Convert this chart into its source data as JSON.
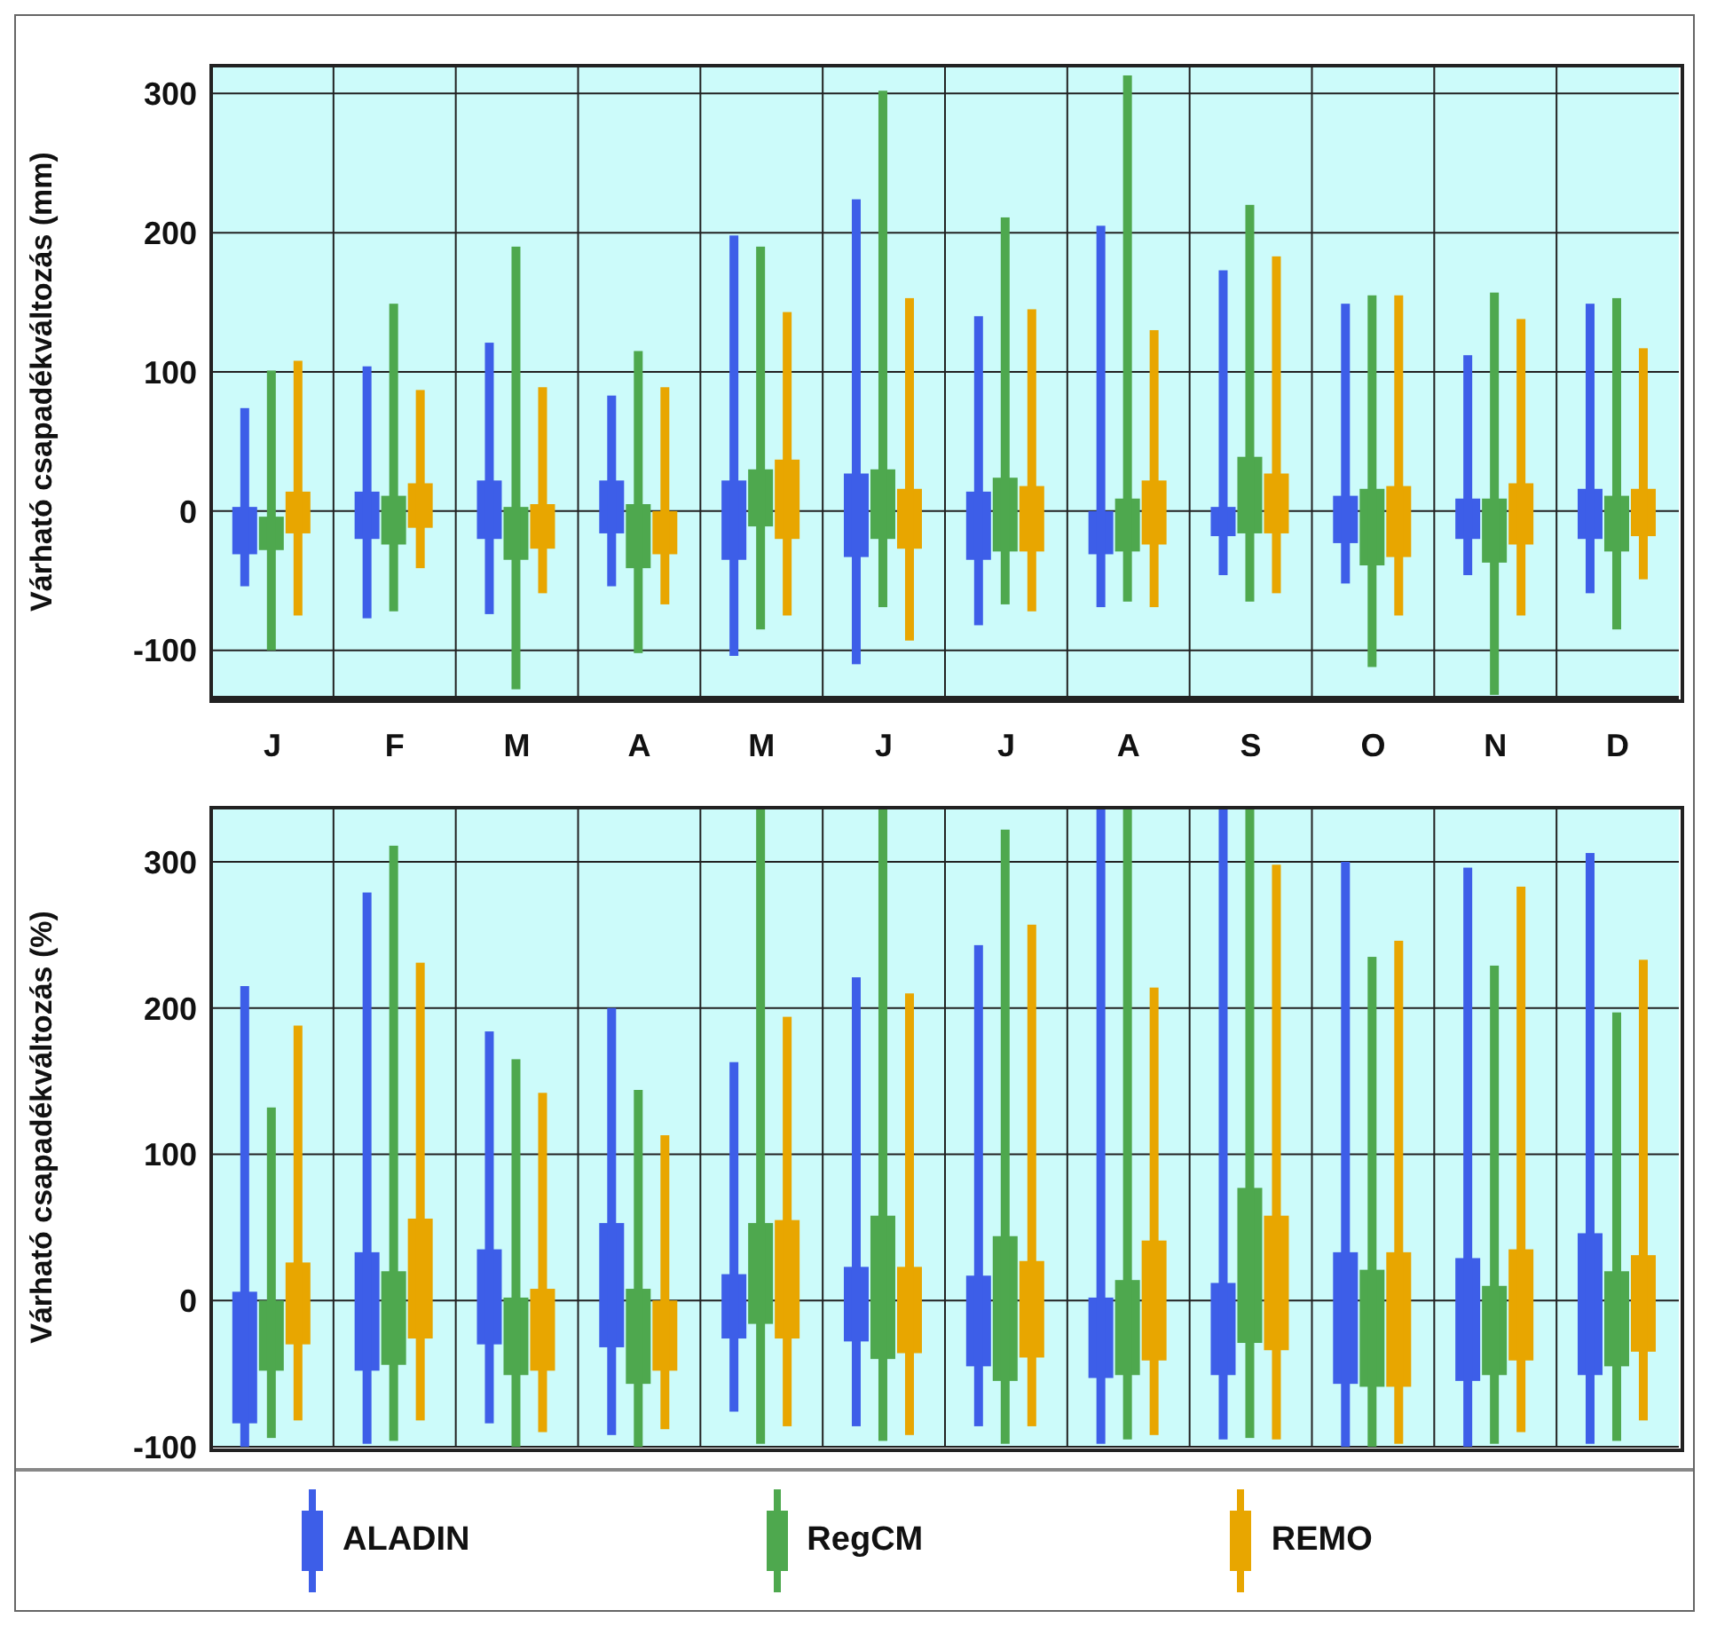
{
  "chart_data": [
    {
      "type": "bar",
      "ylabel": "Várható csapadékváltozás (mm)",
      "categories": [
        "J",
        "F",
        "M",
        "A",
        "M",
        "J",
        "J",
        "A",
        "S",
        "O",
        "N",
        "D"
      ],
      "ylim": [
        -134,
        320
      ],
      "yticks": [
        -100,
        0,
        100,
        200,
        300
      ],
      "grid": true,
      "legend": "bottom",
      "series": [
        {
          "name": "ALADIN",
          "color": "#3d5ee8",
          "base": [
            -31,
            -20,
            -20,
            -16,
            -35,
            -33,
            -35,
            -31,
            -18,
            -23,
            -20,
            -20
          ],
          "values": [
            34,
            34,
            42,
            38,
            57,
            60,
            49,
            31,
            21,
            34,
            29,
            36
          ]
        },
        {
          "name": "RegCM",
          "color": "#4ea84e",
          "base": [
            -28,
            -24,
            -35,
            -41,
            -11,
            -20,
            -29,
            -29,
            -16,
            -39,
            -37,
            -29
          ],
          "values": [
            24,
            35,
            38,
            46,
            41,
            50,
            53,
            38,
            55,
            55,
            46,
            40
          ]
        },
        {
          "name": "REMO",
          "color": "#e8a600",
          "base": [
            -16,
            -12,
            -27,
            -31,
            -20,
            -27,
            -29,
            -24,
            -16,
            -33,
            -24,
            -18
          ],
          "values": [
            30,
            32,
            32,
            31,
            57,
            43,
            47,
            46,
            43,
            51,
            44,
            34
          ]
        },
        {
          "color": "#3d5ee8",
          "base": [
            -54,
            -77,
            -74,
            -54,
            -104,
            -110,
            -82,
            -69,
            -46,
            -52,
            -46,
            -59
          ],
          "values": [
            128,
            181,
            195,
            137,
            302,
            334,
            222,
            274,
            219,
            201,
            158,
            208
          ]
        },
        {
          "color": "#4ea84e",
          "base": [
            -100,
            -72,
            -128,
            -102,
            -85,
            -69,
            -67,
            -65,
            -65,
            -112,
            -132,
            -85
          ],
          "values": [
            201,
            221,
            318,
            217,
            275,
            371,
            278,
            378,
            285,
            267,
            289,
            238
          ]
        },
        {
          "color": "#e8a600",
          "base": [
            -75,
            -41,
            -59,
            -67,
            -75,
            -93,
            -72,
            -69,
            -59,
            -75,
            -75,
            -49
          ],
          "values": [
            183,
            128,
            148,
            156,
            218,
            246,
            217,
            199,
            242,
            230,
            213,
            166
          ]
        }
      ]
    },
    {
      "type": "bar",
      "ylabel": "Várható csapadékváltozás (%)",
      "categories": [
        null,
        null,
        null,
        null,
        null,
        null,
        null,
        null,
        null,
        null,
        null,
        null
      ],
      "ylim": [
        -100,
        337
      ],
      "yticks": [
        -100,
        0,
        100,
        200,
        300
      ],
      "grid": true,
      "tick_labels": "y",
      "series": [
        {
          "color": "#3d5ee8",
          "base": [
            -84,
            -48,
            -30,
            -32,
            -26,
            -28,
            -45,
            -53,
            -51,
            -57,
            -55,
            -51
          ],
          "values": [
            90,
            81,
            65,
            85,
            44,
            51,
            62,
            55,
            63,
            90,
            84,
            97
          ]
        },
        {
          "color": "#4ea84e",
          "base": [
            -48,
            -44,
            -51,
            -57,
            -16,
            -40,
            -55,
            -51,
            -29,
            -59,
            -51,
            -45
          ],
          "values": [
            48,
            64,
            53,
            65,
            69,
            98,
            99,
            65,
            106,
            80,
            61,
            65
          ]
        },
        {
          "color": "#e8a600",
          "base": [
            -30,
            -26,
            -48,
            -48,
            -26,
            -36,
            -39,
            -41,
            -34,
            -59,
            -41,
            -35
          ],
          "values": [
            56,
            82,
            56,
            48,
            81,
            59,
            66,
            82,
            92,
            92,
            76,
            66
          ]
        },
        {
          "color": "#3d5ee8",
          "base": [
            -100,
            -98,
            -84,
            -92,
            -76,
            -86,
            -86,
            -98,
            -95,
            -100,
            -100,
            -98
          ],
          "values": [
            315,
            377,
            268,
            292,
            239,
            307,
            329,
            435,
            432,
            400,
            396,
            404
          ]
        },
        {
          "color": "#4ea84e",
          "base": [
            -94,
            -96,
            -100,
            -100,
            -98,
            -96,
            -98,
            -95,
            -94,
            -100,
            -98,
            -96
          ],
          "values": [
            226,
            407,
            265,
            244,
            435,
            433,
            420,
            432,
            431,
            335,
            327,
            293
          ]
        },
        {
          "color": "#e8a600",
          "base": [
            -82,
            -82,
            -90,
            -88,
            -86,
            -92,
            -86,
            -92,
            -95,
            -98,
            -90,
            -82
          ],
          "values": [
            270,
            313,
            232,
            201,
            280,
            302,
            343,
            306,
            393,
            344,
            373,
            315
          ]
        }
      ]
    }
  ]
}
